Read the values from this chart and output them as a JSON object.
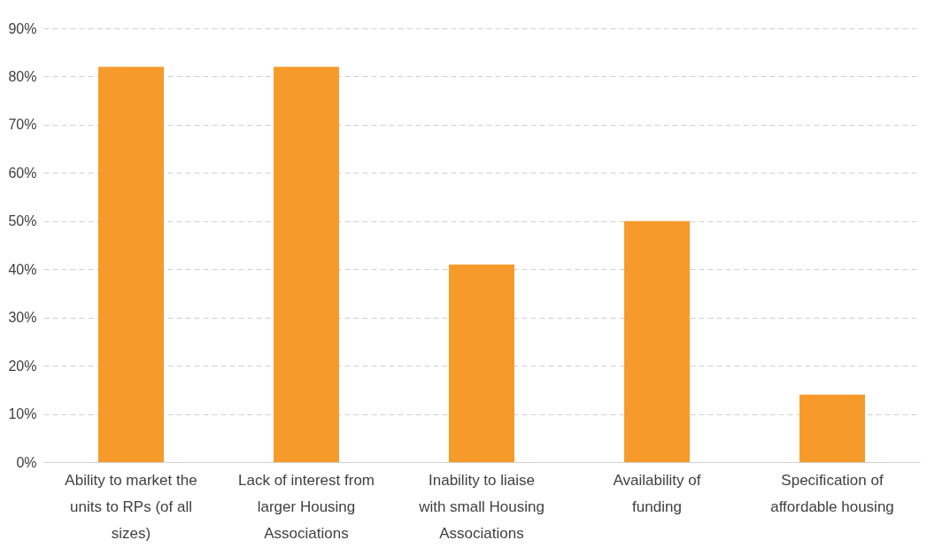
{
  "chart_data": {
    "type": "bar",
    "categories": [
      "Ability to market the units to RPs (of all sizes)",
      "Lack of interest from larger Housing Associations",
      "Inability to liaise with small Housing Associations",
      "Availability of funding",
      "Specification of affordable housing"
    ],
    "values": [
      82,
      82,
      41,
      50,
      14
    ],
    "color": "#f79a2c",
    "ylim": [
      0,
      90
    ],
    "yticks": [
      {
        "value": 0,
        "label": "0%"
      },
      {
        "value": 10,
        "label": "10%"
      },
      {
        "value": 20,
        "label": "20%"
      },
      {
        "value": 30,
        "label": "30%"
      },
      {
        "value": 40,
        "label": "40%"
      },
      {
        "value": 50,
        "label": "50%"
      },
      {
        "value": 60,
        "label": "60%"
      },
      {
        "value": 70,
        "label": "70%"
      },
      {
        "value": 80,
        "label": "80%"
      },
      {
        "value": 90,
        "label": "90%"
      }
    ],
    "grid": "y",
    "line_style": "dashed"
  }
}
